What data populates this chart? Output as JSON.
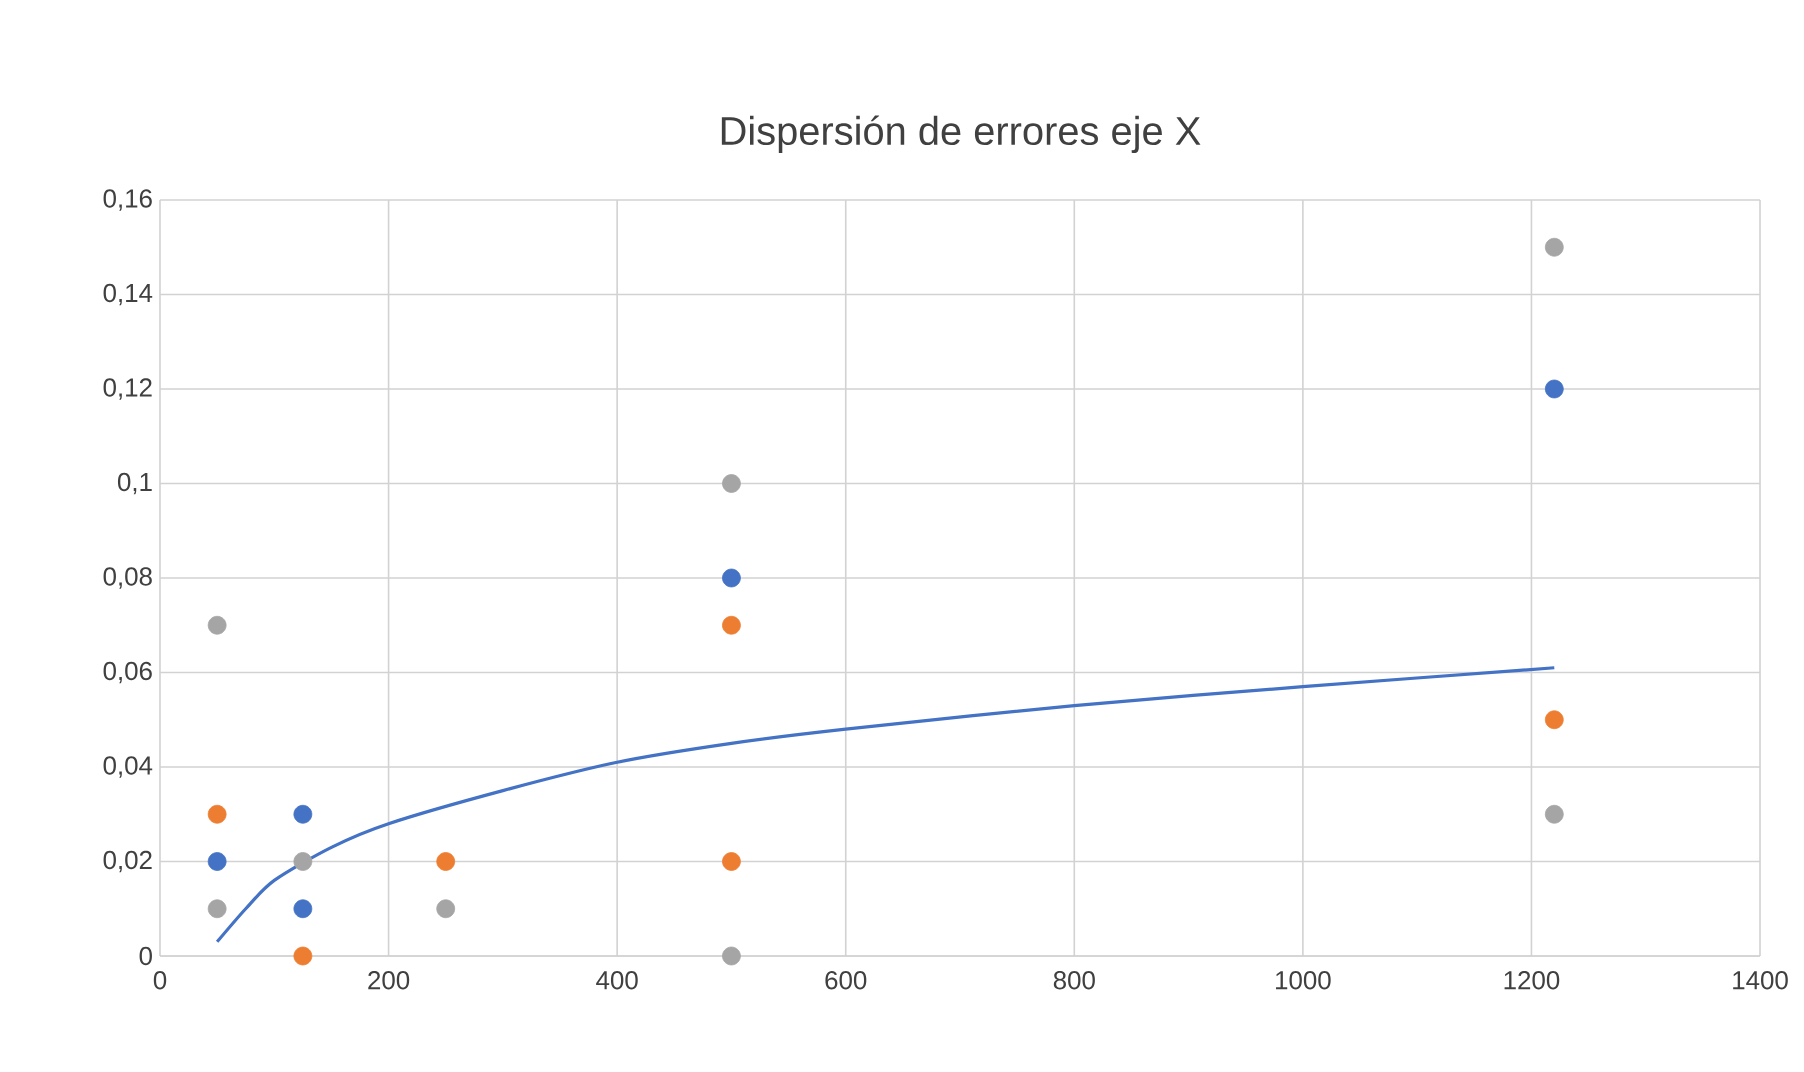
{
  "chart_data": {
    "type": "scatter",
    "title": "Dispersión de errores eje X",
    "series": [
      {
        "color": "#4472c4",
        "x": [
          50,
          125,
          125,
          500,
          1220
        ],
        "values": [
          0.02,
          0.03,
          0.01,
          0.08,
          0.12
        ]
      },
      {
        "color": "#ed7d31",
        "x": [
          50,
          125,
          250,
          500,
          500,
          1220
        ],
        "values": [
          0.03,
          0,
          0.02,
          0.07,
          0.02,
          0.05
        ]
      },
      {
        "color": "#a5a5a5",
        "x": [
          50,
          50,
          125,
          250,
          500,
          500,
          1220,
          1220
        ],
        "values": [
          0.07,
          0.01,
          0.02,
          0.01,
          0.1,
          0,
          0.15,
          0.03
        ]
      },
      {
        "type": "line",
        "color": "#4472c4",
        "marker": "none",
        "x": [
          50,
          75,
          100,
          150,
          200,
          300,
          400,
          500,
          600,
          800,
          1000,
          1220
        ],
        "values": [
          0.003,
          0.01,
          0.016,
          0.023,
          0.028,
          0.035,
          0.041,
          0.045,
          0.048,
          0.053,
          0.057,
          0.061
        ]
      }
    ],
    "xlim": [
      0,
      1400
    ],
    "xticks": [
      0,
      200,
      400,
      600,
      800,
      1000,
      1200,
      1400
    ],
    "ylim": [
      0,
      0.16
    ],
    "yticks": [
      0,
      {
        "value": 0.02,
        "label": "0,02"
      },
      {
        "value": 0.04,
        "label": "0,04"
      },
      {
        "value": 0.06,
        "label": "0,06"
      },
      {
        "value": 0.08,
        "label": "0,08"
      },
      {
        "value": 0.1,
        "label": "0,1"
      },
      {
        "value": 0.12,
        "label": "0,12"
      },
      {
        "value": 0.14,
        "label": "0,14"
      },
      {
        "value": 0.16,
        "label": "0,16"
      }
    ],
    "grid": true
  }
}
